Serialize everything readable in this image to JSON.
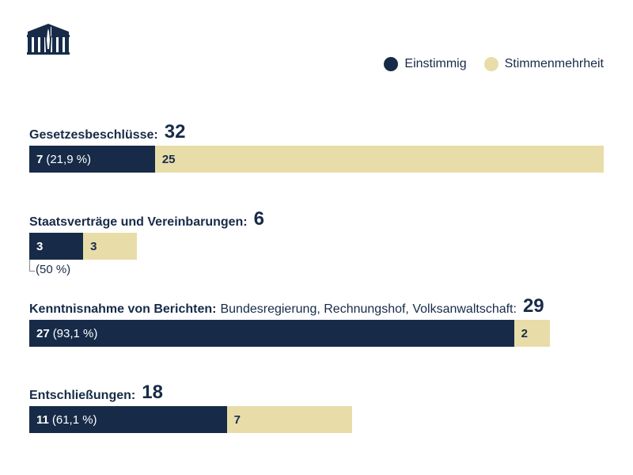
{
  "legend": [
    {
      "label": "Einstimmig",
      "color": "#172b48"
    },
    {
      "label": "Stimmenmehrheit",
      "color": "#e8dca8"
    }
  ],
  "chart_data": {
    "type": "bar",
    "orientation": "horizontal",
    "stacked": true,
    "categories": [
      {
        "label": "Gesetzesbeschlüsse:",
        "sub": "",
        "total": "32"
      },
      {
        "label": "Staatsverträge und Vereinbarungen:",
        "sub": "",
        "total": "6"
      },
      {
        "label": "Kenntnisnahme von Berichten:",
        "sub": "Bundesregierung, Rechnungshof, Volksanwaltschaft:",
        "total": "29"
      },
      {
        "label": "Entschließungen:",
        "sub": "",
        "total": "18"
      }
    ],
    "series": [
      {
        "name": "Einstimmig",
        "values": [
          7,
          3,
          27,
          11
        ],
        "pct_labels": [
          "(21,9 %)",
          "(50 %)",
          "(93,1 %)",
          "(61,1 %)"
        ]
      },
      {
        "name": "Stimmenmehrheit",
        "values": [
          25,
          3,
          2,
          7
        ]
      }
    ]
  }
}
